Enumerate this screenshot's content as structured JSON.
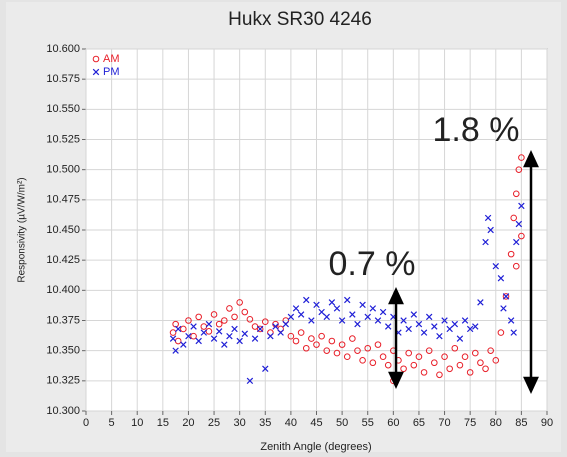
{
  "chart_data": {
    "type": "scatter",
    "title": "Hukx SR30 4246",
    "x_label": "Zenith Angle (degrees)",
    "y_label": "Responsivity (µV/W/m²)",
    "xlim": [
      0,
      90
    ],
    "xticks": [
      0,
      5,
      10,
      15,
      20,
      25,
      30,
      35,
      40,
      45,
      50,
      55,
      60,
      65,
      70,
      75,
      80,
      85,
      90
    ],
    "ylim": [
      10.3,
      10.6
    ],
    "yticks": [
      {
        "value": 10.3,
        "label": "10.300"
      },
      {
        "value": 10.325,
        "label": "10.325"
      },
      {
        "value": 10.35,
        "label": "10.350"
      },
      {
        "value": 10.375,
        "label": "10.375"
      },
      {
        "value": 10.4,
        "label": "10.400"
      },
      {
        "value": 10.425,
        "label": "10.425"
      },
      {
        "value": 10.45,
        "label": "10.450"
      },
      {
        "value": 10.475,
        "label": "10.475"
      },
      {
        "value": 10.5,
        "label": "10.500"
      },
      {
        "value": 10.525,
        "label": "10.525"
      },
      {
        "value": 10.55,
        "label": "10.550"
      },
      {
        "value": 10.575,
        "label": "10.575"
      },
      {
        "value": 10.6,
        "label": "10.600"
      }
    ],
    "grid": true,
    "legend": "upper left",
    "annotations": [
      "0.7 %",
      "1.8 %"
    ],
    "series": [
      {
        "name": "AM",
        "color": "#e8202a",
        "marker": "circle",
        "x": [
          17,
          17.5,
          18,
          19,
          20,
          21,
          22,
          23,
          24,
          25,
          26,
          27,
          28,
          29,
          30,
          31,
          32,
          33,
          34,
          35,
          36,
          37,
          38,
          39,
          40,
          41,
          42,
          43,
          44,
          45,
          46,
          47,
          48,
          49,
          50,
          51,
          52,
          53,
          54,
          55,
          56,
          57,
          58,
          59,
          60,
          60,
          61,
          62,
          63,
          64,
          65,
          66,
          67,
          68,
          69,
          70,
          71,
          72,
          73,
          74,
          75,
          76,
          77,
          78,
          79,
          80,
          81,
          82,
          83,
          83.5,
          84,
          84,
          84.5,
          85,
          85
        ],
        "values": [
          10.365,
          10.372,
          10.358,
          10.368,
          10.375,
          10.362,
          10.378,
          10.37,
          10.366,
          10.38,
          10.372,
          10.375,
          10.385,
          10.378,
          10.39,
          10.382,
          10.376,
          10.37,
          10.368,
          10.374,
          10.365,
          10.372,
          10.368,
          10.375,
          10.362,
          10.358,
          10.365,
          10.352,
          10.36,
          10.355,
          10.362,
          10.35,
          10.358,
          10.348,
          10.355,
          10.345,
          10.36,
          10.35,
          10.342,
          10.352,
          10.34,
          10.355,
          10.345,
          10.338,
          10.35,
          10.325,
          10.342,
          10.335,
          10.348,
          10.338,
          10.345,
          10.332,
          10.35,
          10.34,
          10.33,
          10.345,
          10.335,
          10.352,
          10.338,
          10.345,
          10.332,
          10.348,
          10.34,
          10.335,
          10.35,
          10.342,
          10.365,
          10.395,
          10.43,
          10.46,
          10.48,
          10.42,
          10.5,
          10.51,
          10.445
        ]
      },
      {
        "name": "PM",
        "color": "#1f1fd6",
        "marker": "x",
        "x": [
          17,
          17.5,
          18,
          19,
          20,
          21,
          22,
          23,
          24,
          25,
          26,
          27,
          28,
          29,
          30,
          31,
          32,
          33,
          34,
          35,
          36,
          37,
          38,
          39,
          40,
          41,
          42,
          43,
          44,
          45,
          46,
          47,
          48,
          49,
          50,
          51,
          52,
          53,
          54,
          55,
          56,
          57,
          58,
          59,
          60,
          61,
          62,
          63,
          64,
          65,
          66,
          67,
          68,
          69,
          70,
          71,
          72,
          73,
          74,
          75,
          76,
          77,
          78,
          78.5,
          79,
          80,
          81,
          81.5,
          82,
          83,
          83.5,
          84,
          84.5,
          85
        ],
        "values": [
          10.36,
          10.35,
          10.368,
          10.355,
          10.362,
          10.37,
          10.358,
          10.365,
          10.372,
          10.36,
          10.366,
          10.355,
          10.362,
          10.368,
          10.358,
          10.364,
          10.325,
          10.36,
          10.368,
          10.335,
          10.362,
          10.37,
          10.365,
          10.372,
          10.378,
          10.385,
          10.38,
          10.392,
          10.375,
          10.388,
          10.382,
          10.378,
          10.39,
          10.385,
          10.375,
          10.392,
          10.38,
          10.372,
          10.388,
          10.378,
          10.385,
          10.375,
          10.382,
          10.37,
          10.378,
          10.365,
          10.375,
          10.368,
          10.38,
          10.372,
          10.365,
          10.378,
          10.37,
          10.362,
          10.375,
          10.368,
          10.372,
          10.36,
          10.375,
          10.368,
          10.37,
          10.39,
          10.44,
          10.46,
          10.45,
          10.42,
          10.41,
          10.385,
          10.395,
          10.375,
          10.365,
          10.44,
          10.455,
          10.47
        ]
      }
    ]
  }
}
